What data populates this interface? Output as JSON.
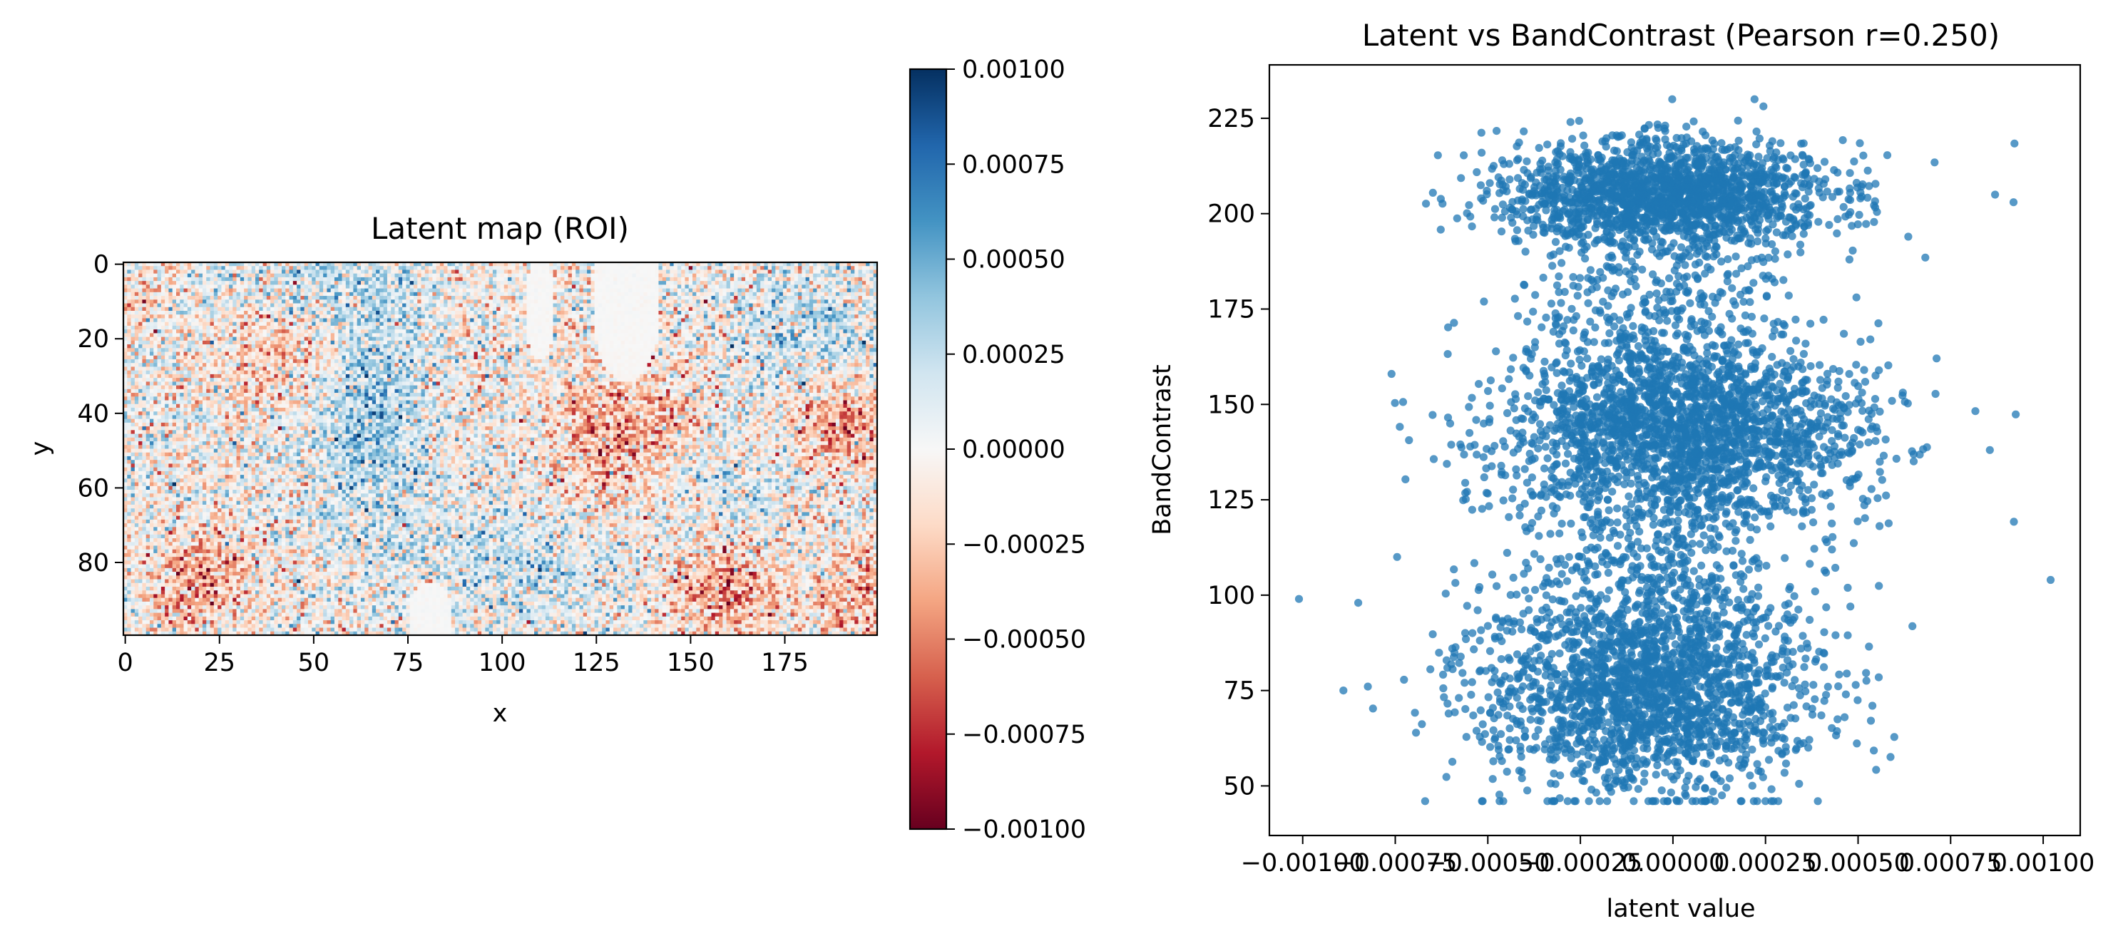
{
  "chart_data": [
    {
      "type": "heatmap",
      "title": "Latent map (ROI)",
      "xlabel": "x",
      "ylabel": "y",
      "x_range": [
        0,
        200
      ],
      "y_range": [
        0,
        100
      ],
      "xticks": [
        "0",
        "25",
        "50",
        "75",
        "100",
        "125",
        "150",
        "175"
      ],
      "yticks": [
        "0",
        "20",
        "40",
        "60",
        "80"
      ],
      "colormap": "RdBu",
      "value_range": [
        -0.001,
        0.001
      ],
      "grid": false
    },
    {
      "type": "colorbar",
      "ticks": [
        "0.00100",
        "0.00075",
        "0.00050",
        "0.00025",
        "0.00000",
        "−0.00025",
        "−0.00050",
        "−0.00075",
        "−0.00100"
      ],
      "range": [
        -0.001,
        0.001
      ]
    },
    {
      "type": "scatter",
      "title": "Latent vs BandContrast (Pearson r=0.250)",
      "xlabel": "latent value",
      "ylabel": "BandContrast",
      "xlim": [
        -0.00109,
        0.0011
      ],
      "ylim": [
        37,
        239
      ],
      "xticks": [
        "−0.00100",
        "−0.00075",
        "−0.00050",
        "−0.00025",
        "0.00000",
        "0.00025",
        "0.00050",
        "0.00075",
        "0.00100"
      ],
      "yticks": [
        "50",
        "75",
        "100",
        "125",
        "150",
        "175",
        "200",
        "225"
      ],
      "point_color": "#1f77b4",
      "grid": false
    }
  ]
}
